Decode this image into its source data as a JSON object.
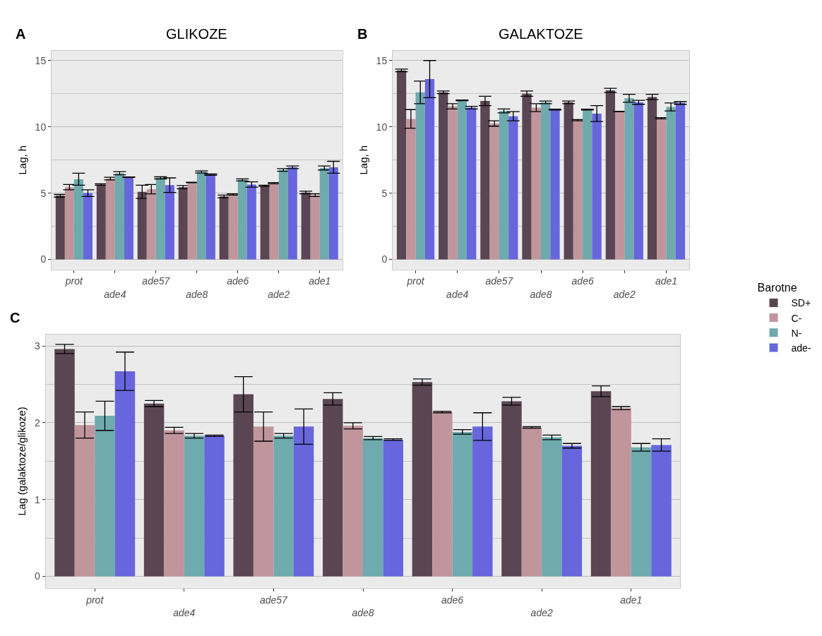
{
  "chart_data": [
    {
      "type": "bar",
      "title": "GLIKOZE",
      "ylabel": "Lag, h",
      "annotations": [
        "A"
      ],
      "grid": "y",
      "legend": "right",
      "legend_title": "Barotne",
      "categories": [
        "prot",
        "ade4",
        "ade57",
        "ade8",
        "ade6",
        "ade2",
        "ade1"
      ],
      "ylim": [
        -0.75,
        15.75
      ],
      "yticks": [
        0,
        {
          "value": 2.5,
          "label": null
        },
        5,
        {
          "value": 7.5,
          "label": null
        },
        10,
        {
          "value": 12.5,
          "label": null
        },
        15
      ],
      "series": [
        {
          "name": "SD+",
          "color": "#5a4652",
          "values": [
            4.8,
            5.65,
            5.1,
            5.45,
            4.75,
            5.55,
            5.05
          ],
          "errors": [
            0.1,
            0.05,
            0.5,
            0.12,
            0.1,
            0.05,
            0.1
          ]
        },
        {
          "name": "C-",
          "color": "#c0969c",
          "values": [
            5.45,
            6.1,
            5.3,
            5.8,
            4.9,
            5.75,
            4.85
          ],
          "errors": [
            0.2,
            0.1,
            0.35,
            0.02,
            0.05,
            0.05,
            0.1
          ]
        },
        {
          "name": "N-",
          "color": "#6eaaae",
          "values": [
            6.05,
            6.5,
            6.15,
            6.6,
            6.0,
            6.75,
            6.9
          ],
          "errors": [
            0.45,
            0.12,
            0.08,
            0.08,
            0.08,
            0.1,
            0.15
          ]
        },
        {
          "name": "ade-",
          "color": "#6766dc",
          "values": [
            5.0,
            6.2,
            5.6,
            6.4,
            5.65,
            6.95,
            6.95
          ],
          "errors": [
            0.25,
            0.02,
            0.55,
            0.05,
            0.2,
            0.1,
            0.45
          ]
        }
      ]
    },
    {
      "type": "bar",
      "title": "GALAKTOZE",
      "ylabel": "Lag, h",
      "annotations": [
        "B"
      ],
      "grid": "y",
      "categories": [
        "prot",
        "ade4",
        "ade57",
        "ade8",
        "ade6",
        "ade2",
        "ade1"
      ],
      "ylim": [
        -0.75,
        15.75
      ],
      "yticks": [
        0,
        {
          "value": 2.5,
          "label": null
        },
        5,
        {
          "value": 7.5,
          "label": null
        },
        10,
        {
          "value": 12.5,
          "label": null
        },
        15
      ],
      "series": [
        {
          "color": "#5a4652",
          "values": [
            14.25,
            12.6,
            11.95,
            12.5,
            11.85,
            12.75,
            12.25
          ],
          "errors": [
            0.1,
            0.1,
            0.35,
            0.2,
            0.1,
            0.15,
            0.2
          ]
        },
        {
          "color": "#c0969c",
          "values": [
            10.6,
            11.55,
            10.25,
            11.45,
            10.5,
            11.15,
            10.65
          ],
          "errors": [
            0.7,
            0.2,
            0.2,
            0.3,
            0.05,
            0.02,
            0.05
          ]
        },
        {
          "color": "#6eaaae",
          "values": [
            12.6,
            12.0,
            11.2,
            11.85,
            11.3,
            12.15,
            11.5
          ],
          "errors": [
            0.85,
            0.03,
            0.15,
            0.1,
            0.03,
            0.3,
            0.3
          ]
        },
        {
          "color": "#6766dc",
          "values": [
            13.6,
            11.45,
            10.8,
            11.3,
            11.0,
            11.85,
            11.8
          ],
          "errors": [
            1.4,
            0.1,
            0.35,
            0.03,
            0.6,
            0.15,
            0.1
          ]
        }
      ]
    },
    {
      "type": "bar",
      "ylabel": "Lag (galaktoze/glikoze)",
      "annotations": [
        "C"
      ],
      "grid": "y",
      "categories": [
        "prot",
        "ade4",
        "ade57",
        "ade8",
        "ade6",
        "ade2",
        "ade1"
      ],
      "ylim": [
        -0.15,
        3.15
      ],
      "yticks": [
        0,
        {
          "value": 0.5,
          "label": null
        },
        1,
        {
          "value": 1.5,
          "label": null
        },
        2,
        {
          "value": 2.5,
          "label": null
        },
        3
      ],
      "series": [
        {
          "color": "#5a4652",
          "values": [
            2.96,
            2.25,
            2.37,
            2.31,
            2.53,
            2.28,
            2.41
          ],
          "errors": [
            0.06,
            0.04,
            0.23,
            0.08,
            0.04,
            0.05,
            0.07
          ]
        },
        {
          "color": "#c0969c",
          "values": [
            1.97,
            1.9,
            1.95,
            1.96,
            2.14,
            1.94,
            2.19
          ],
          "errors": [
            0.17,
            0.04,
            0.19,
            0.04,
            0.01,
            0.01,
            0.02
          ]
        },
        {
          "color": "#6eaaae",
          "values": [
            2.09,
            1.83,
            1.83,
            1.8,
            1.88,
            1.81,
            1.68
          ],
          "errors": [
            0.19,
            0.03,
            0.03,
            0.02,
            0.03,
            0.03,
            0.05
          ]
        },
        {
          "color": "#6766dc",
          "values": [
            2.67,
            1.83,
            1.95,
            1.78,
            1.95,
            1.7,
            1.71
          ],
          "errors": [
            0.25,
            0.01,
            0.23,
            0.01,
            0.18,
            0.03,
            0.08
          ]
        }
      ]
    }
  ]
}
